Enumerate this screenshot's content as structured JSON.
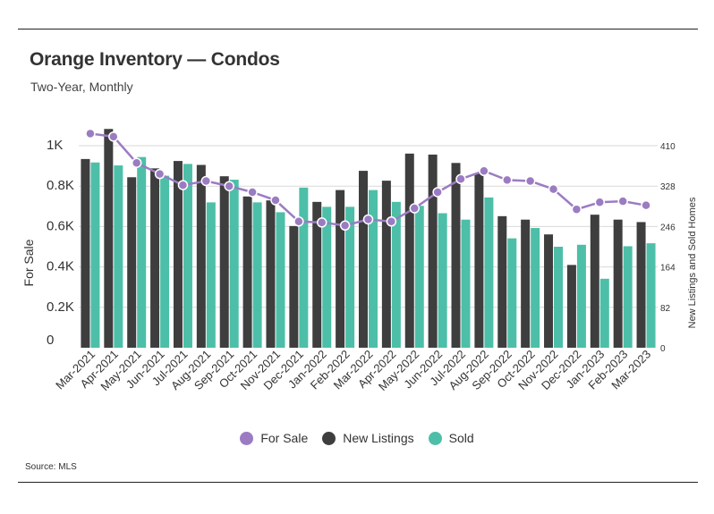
{
  "title": "Orange Inventory — Condos",
  "subtitle": "Two-Year, Monthly",
  "source": "Source: MLS",
  "colors": {
    "for_sale": "#9b7cc2",
    "new_listings": "#3e3e3e",
    "sold": "#4dbfa8",
    "grid": "#d9d9d9"
  },
  "legend": [
    {
      "label": "For Sale",
      "color": "#9b7cc2"
    },
    {
      "label": "New Listings",
      "color": "#3e3e3e"
    },
    {
      "label": "Sold",
      "color": "#4dbfa8"
    }
  ],
  "chart_data": {
    "type": "bar+line",
    "categories": [
      "Mar-2021",
      "Apr-2021",
      "May-2021",
      "Jun-2021",
      "Jul-2021",
      "Aug-2021",
      "Sep-2021",
      "Oct-2021",
      "Nov-2021",
      "Dec-2021",
      "Jan-2022",
      "Feb-2022",
      "Mar-2022",
      "Apr-2022",
      "May-2022",
      "Jun-2022",
      "Jul-2022",
      "Aug-2022",
      "Sep-2022",
      "Oct-2022",
      "Nov-2022",
      "Dec-2022",
      "Jan-2023",
      "Feb-2023",
      "Mar-2023"
    ],
    "ylabel_left": "For Sale",
    "ylabel_right": "New Listings and Sold Homes",
    "left_ticks": [
      "0",
      "0.2K",
      "0.4K",
      "0.6K",
      "0.8K",
      "1K"
    ],
    "left_ylim": [
      0,
      1000
    ],
    "right_ticks": [
      "0",
      "82",
      "164",
      "246",
      "328",
      "410"
    ],
    "right_ylim": [
      0,
      410
    ],
    "series": [
      {
        "name": "For Sale",
        "axis": "left",
        "kind": "line",
        "values": [
          1060,
          1045,
          915,
          860,
          805,
          825,
          800,
          770,
          730,
          625,
          620,
          605,
          635,
          625,
          690,
          770,
          835,
          875,
          830,
          825,
          785,
          685,
          720,
          725,
          705
        ]
      },
      {
        "name": "New Listings",
        "axis": "right",
        "kind": "bar",
        "values": [
          383,
          444,
          346,
          364,
          379,
          371,
          348,
          307,
          299,
          247,
          296,
          320,
          359,
          339,
          394,
          392,
          375,
          354,
          267,
          260,
          230,
          168,
          270,
          260,
          255
        ]
      },
      {
        "name": "Sold",
        "axis": "right",
        "kind": "bar",
        "values": [
          376,
          370,
          387,
          349,
          373,
          295,
          341,
          295,
          275,
          325,
          286,
          286,
          320,
          296,
          288,
          273,
          260,
          305,
          222,
          243,
          205,
          209,
          140,
          206,
          212
        ]
      }
    ]
  }
}
